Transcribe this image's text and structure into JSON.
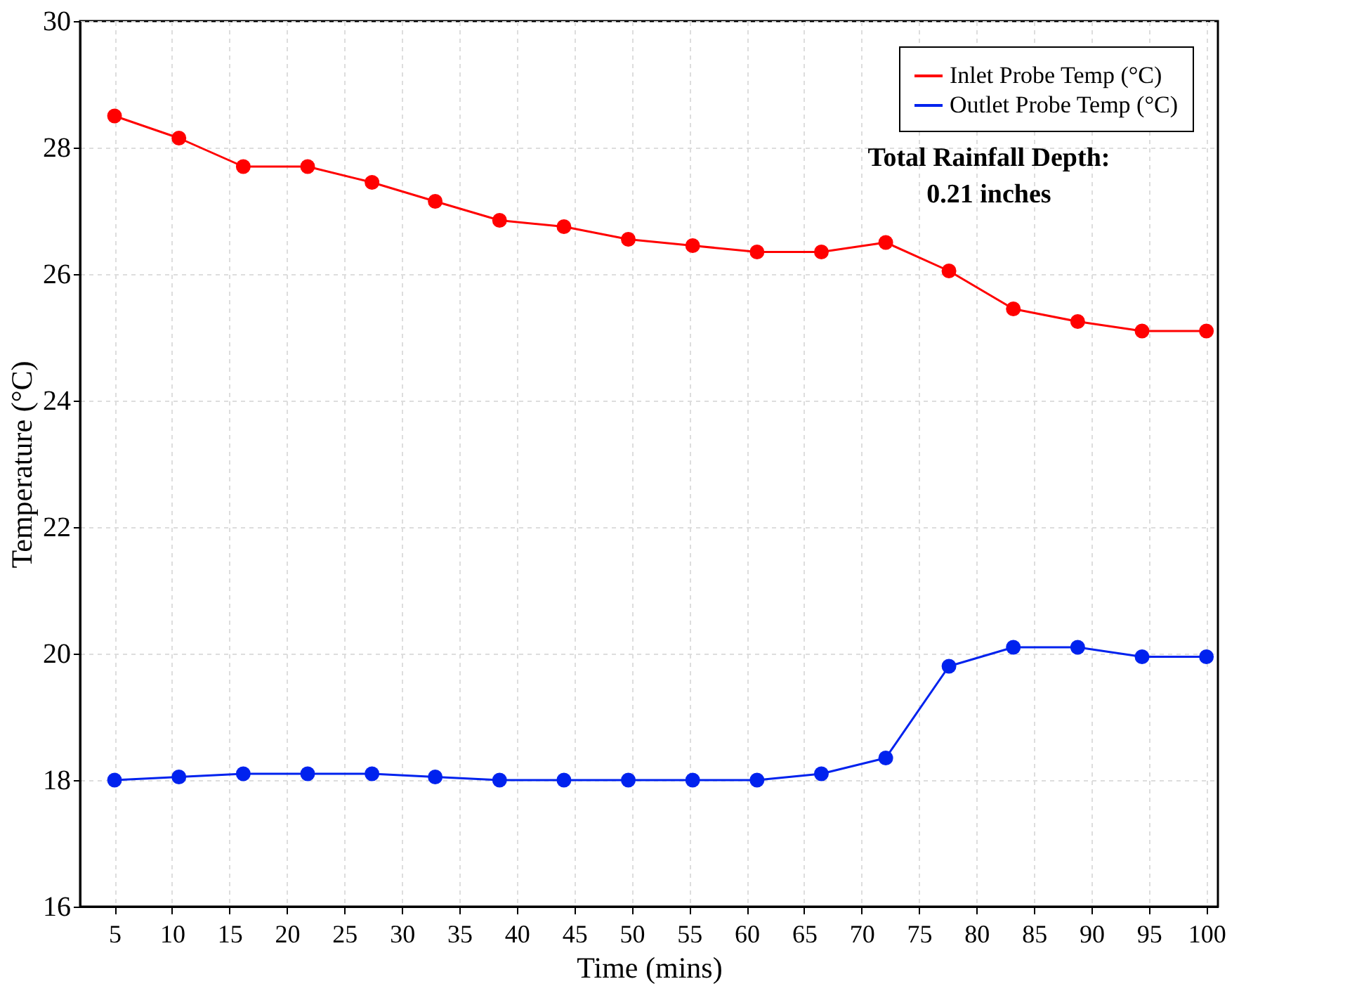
{
  "chart_data": {
    "type": "line",
    "xlabel": "Time (mins)",
    "ylabel": "Temperature (°C)",
    "x": [
      5,
      10.6,
      16.2,
      21.8,
      27.4,
      32.9,
      38.5,
      44.1,
      49.7,
      55.3,
      60.9,
      66.5,
      72.1,
      77.6,
      83.2,
      88.8,
      94.4,
      100
    ],
    "series": [
      {
        "name": "Inlet Probe Temp (°C)",
        "color": "#ff0000",
        "values": [
          28.5,
          28.15,
          27.7,
          27.7,
          27.45,
          27.15,
          26.85,
          26.75,
          26.55,
          26.45,
          26.35,
          26.35,
          26.5,
          26.05,
          25.45,
          25.25,
          25.1,
          25.1
        ]
      },
      {
        "name": "Outlet Probe Temp (°C)",
        "color": "#0022ee",
        "values": [
          18.0,
          18.05,
          18.1,
          18.1,
          18.1,
          18.05,
          18.0,
          18.0,
          18.0,
          18.0,
          18.0,
          18.1,
          18.35,
          19.8,
          20.1,
          20.1,
          19.95,
          19.95
        ]
      }
    ],
    "xlim": [
      2,
      101
    ],
    "xticks": [
      5,
      10,
      15,
      20,
      25,
      30,
      35,
      40,
      45,
      50,
      55,
      60,
      65,
      70,
      75,
      80,
      85,
      90,
      95,
      100
    ],
    "ylim": [
      16,
      30
    ],
    "yticks": [
      16,
      18,
      20,
      22,
      24,
      26,
      28,
      30
    ],
    "grid": true,
    "legend": "top right",
    "marker": "circle",
    "line_style": "solid",
    "annotations": [
      "Total Rainfall Depth:\n0.21 inches"
    ]
  }
}
